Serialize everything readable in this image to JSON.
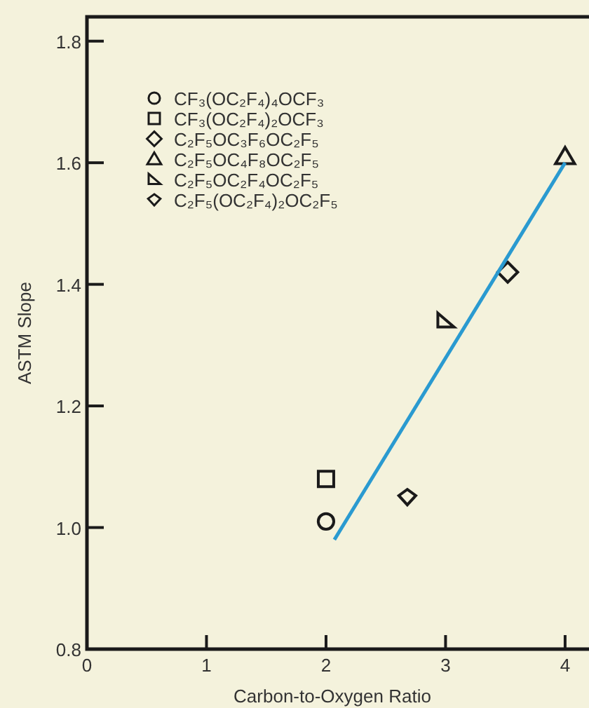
{
  "chart_data": {
    "type": "scatter",
    "xlabel": "Carbon-to-Oxygen Ratio",
    "ylabel": "ASTM Slope",
    "xlim": [
      0,
      4.2
    ],
    "ylim": [
      0.8,
      1.84
    ],
    "xticks": [
      0,
      1,
      2,
      3,
      4
    ],
    "yticks": [
      {
        "value": 0.8,
        "label": "0.8"
      },
      {
        "value": 1.0,
        "label": "1.0"
      },
      {
        "value": 1.2,
        "label": "1.2"
      },
      {
        "value": 1.4,
        "label": "1.4"
      },
      {
        "value": 1.6,
        "label": "1.6"
      },
      {
        "value": 1.8,
        "label": "1.8"
      }
    ],
    "grid": false,
    "legend": "top left",
    "series": [
      {
        "name": "CF₃(OC₂F₄)₄OCF₃",
        "color": "#1a1a1a",
        "marker": "circle",
        "x": [
          2
        ],
        "values": [
          1.01
        ]
      },
      {
        "name": "CF₃(OC₂F₄)₂OCF₃",
        "color": "#1a1a1a",
        "marker": "square",
        "x": [
          2
        ],
        "values": [
          1.08
        ]
      },
      {
        "name": "C₂F₅OC₃F₆OC₂F₅",
        "color": "#1a1a1a",
        "marker": "diamond",
        "x": [
          3.52
        ],
        "values": [
          1.42
        ]
      },
      {
        "name": "C₂F₅OC₄F₈OC₂F₅",
        "color": "#1a1a1a",
        "marker": "triangle",
        "x": [
          4
        ],
        "values": [
          1.61
        ]
      },
      {
        "name": "C₂F₅OC₂F₄OC₂F₅",
        "color": "#1a1a1a",
        "marker": "triangle",
        "x": [
          3
        ],
        "values": [
          1.34
        ]
      },
      {
        "name": "C₂F₅(OC₂F₄)₂OC₂F₅",
        "color": "#1a1a1a",
        "marker": "diamond",
        "x": [
          2.68
        ],
        "values": [
          1.05
        ]
      },
      {
        "type": "line",
        "color": "#2a9ad0",
        "marker": "none",
        "line_style": "solid",
        "x": [
          2.07,
          4
        ],
        "values": [
          0.98,
          1.6
        ]
      }
    ]
  }
}
